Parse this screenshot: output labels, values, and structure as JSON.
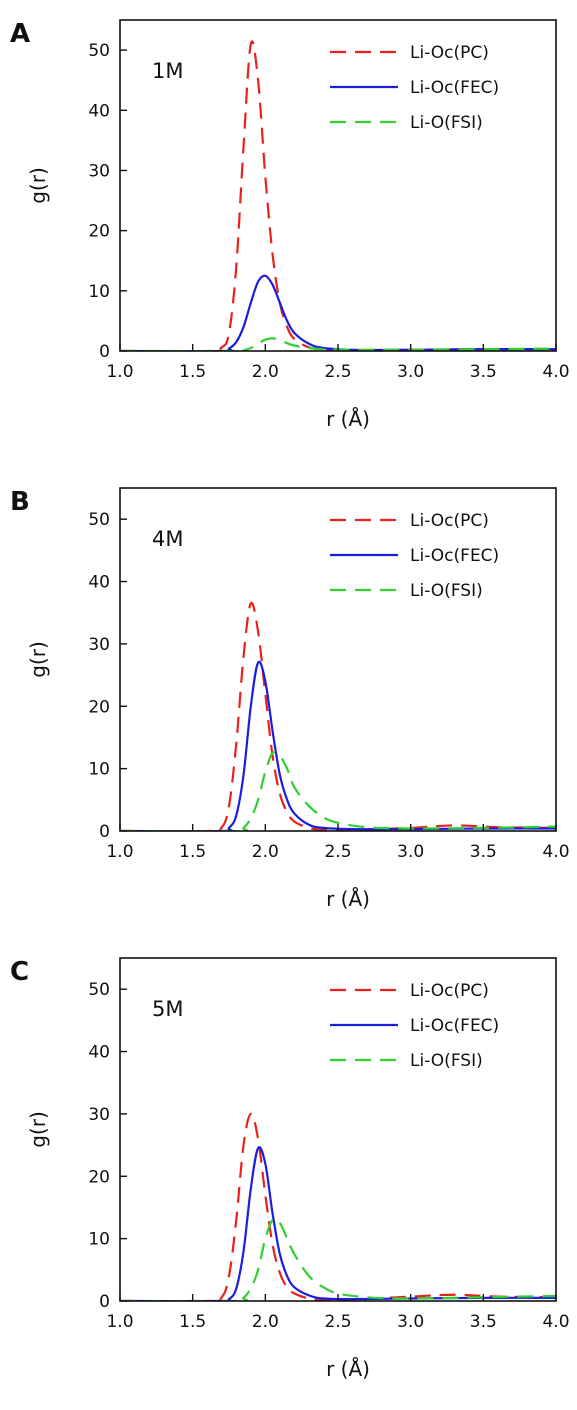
{
  "chart_data": [
    {
      "type": "line",
      "panel_label": "A",
      "annotation": "1M",
      "xlabel": "r (Å)",
      "ylabel": "g(r)",
      "xlim": [
        1.0,
        4.0
      ],
      "ylim": [
        0,
        55
      ],
      "x_ticks": [
        1.0,
        1.5,
        2.0,
        2.5,
        3.0,
        3.5,
        4.0
      ],
      "x_tick_labels": [
        "1.0",
        "1.5",
        "2.0",
        "2.5",
        "3.0",
        "3.5",
        "4.0"
      ],
      "y_ticks": [
        0,
        10,
        20,
        30,
        40,
        50
      ],
      "y_tick_labels": [
        "0",
        "10",
        "20",
        "30",
        "40",
        "50"
      ],
      "grid": false,
      "legend_position": "top-right",
      "series": [
        {
          "name": "Li-Oc(PC)",
          "color": "#e8211c",
          "dash": "dashed",
          "x": [
            1.0,
            1.6,
            1.7,
            1.75,
            1.8,
            1.85,
            1.9,
            1.95,
            2.0,
            2.05,
            2.1,
            2.15,
            2.2,
            2.3,
            2.4,
            2.6,
            3.0,
            3.5,
            4.0
          ],
          "y": [
            0,
            0,
            0.6,
            3,
            14,
            34,
            51,
            45,
            29,
            16,
            8,
            4,
            2,
            0.6,
            0.2,
            0.1,
            0.2,
            0.3,
            0.3
          ]
        },
        {
          "name": "Li-Oc(FEC)",
          "color": "#1c1ce0",
          "dash": "solid",
          "x": [
            1.0,
            1.7,
            1.75,
            1.8,
            1.85,
            1.9,
            1.95,
            2.0,
            2.05,
            2.1,
            2.15,
            2.2,
            2.3,
            2.4,
            2.6,
            3.0,
            3.5,
            4.0
          ],
          "y": [
            0,
            0,
            0.4,
            1.5,
            4,
            8,
            11.5,
            12.5,
            11,
            8,
            5,
            3,
            1.2,
            0.5,
            0.2,
            0.2,
            0.3,
            0.3
          ]
        },
        {
          "name": "Li-O(FSI)",
          "color": "#2fd02f",
          "dash": "dashed",
          "x": [
            1.0,
            1.8,
            1.85,
            1.9,
            1.95,
            2.0,
            2.05,
            2.1,
            2.15,
            2.2,
            2.3,
            2.4,
            2.6,
            3.0,
            3.5,
            4.0
          ],
          "y": [
            0,
            0,
            0.1,
            0.5,
            1.2,
            1.9,
            2.1,
            1.8,
            1.3,
            0.9,
            0.5,
            0.3,
            0.2,
            0.2,
            0.3,
            0.4
          ]
        }
      ]
    },
    {
      "type": "line",
      "panel_label": "B",
      "annotation": "4M",
      "xlabel": "r (Å)",
      "ylabel": "g(r)",
      "xlim": [
        1.0,
        4.0
      ],
      "ylim": [
        0,
        55
      ],
      "x_ticks": [
        1.0,
        1.5,
        2.0,
        2.5,
        3.0,
        3.5,
        4.0
      ],
      "x_tick_labels": [
        "1.0",
        "1.5",
        "2.0",
        "2.5",
        "3.0",
        "3.5",
        "4.0"
      ],
      "y_ticks": [
        0,
        10,
        20,
        30,
        40,
        50
      ],
      "y_tick_labels": [
        "0",
        "10",
        "20",
        "30",
        "40",
        "50"
      ],
      "grid": false,
      "legend_position": "top-right",
      "series": [
        {
          "name": "Li-Oc(PC)",
          "color": "#e8211c",
          "dash": "dashed",
          "x": [
            1.0,
            1.6,
            1.7,
            1.75,
            1.8,
            1.85,
            1.9,
            1.95,
            2.0,
            2.05,
            2.1,
            2.15,
            2.2,
            2.3,
            2.4,
            2.6,
            3.0,
            3.3,
            3.6,
            4.0
          ],
          "y": [
            0,
            0,
            0.6,
            4,
            14,
            28,
            36.5,
            32,
            22,
            12,
            6,
            3,
            1.5,
            0.5,
            0.2,
            0.2,
            0.5,
            0.9,
            0.6,
            0.5
          ]
        },
        {
          "name": "Li-Oc(FEC)",
          "color": "#1c1ce0",
          "dash": "solid",
          "x": [
            1.0,
            1.7,
            1.75,
            1.8,
            1.85,
            1.9,
            1.95,
            2.0,
            2.05,
            2.1,
            2.15,
            2.2,
            2.3,
            2.4,
            2.6,
            3.0,
            3.5,
            4.0
          ],
          "y": [
            0,
            0,
            0.5,
            2.5,
            9,
            20,
            27,
            24,
            16,
            9,
            5,
            2.8,
            1,
            0.5,
            0.3,
            0.3,
            0.4,
            0.4
          ]
        },
        {
          "name": "Li-O(FSI)",
          "color": "#2fd02f",
          "dash": "dashed",
          "x": [
            1.0,
            1.8,
            1.85,
            1.9,
            1.95,
            2.0,
            2.05,
            2.1,
            2.15,
            2.2,
            2.3,
            2.4,
            2.5,
            2.7,
            3.0,
            3.5,
            4.0
          ],
          "y": [
            0,
            0,
            0.5,
            2,
            5,
            9.5,
            12.5,
            12,
            10,
            7,
            4,
            2.2,
            1.3,
            0.6,
            0.4,
            0.5,
            0.7
          ]
        }
      ]
    },
    {
      "type": "line",
      "panel_label": "C",
      "annotation": "5M",
      "xlabel": "r (Å)",
      "ylabel": "g(r)",
      "xlim": [
        1.0,
        4.0
      ],
      "ylim": [
        0,
        55
      ],
      "x_ticks": [
        1.0,
        1.5,
        2.0,
        2.5,
        3.0,
        3.5,
        4.0
      ],
      "x_tick_labels": [
        "1.0",
        "1.5",
        "2.0",
        "2.5",
        "3.0",
        "3.5",
        "4.0"
      ],
      "y_ticks": [
        0,
        10,
        20,
        30,
        40,
        50
      ],
      "y_tick_labels": [
        "0",
        "10",
        "20",
        "30",
        "40",
        "50"
      ],
      "grid": false,
      "legend_position": "top-right",
      "series": [
        {
          "name": "Li-Oc(PC)",
          "color": "#e8211c",
          "dash": "dashed",
          "x": [
            1.0,
            1.6,
            1.7,
            1.75,
            1.8,
            1.85,
            1.9,
            1.95,
            2.0,
            2.05,
            2.1,
            2.15,
            2.2,
            2.3,
            2.4,
            2.6,
            3.0,
            3.3,
            3.6,
            4.0
          ],
          "y": [
            0,
            0,
            0.6,
            4,
            13,
            25,
            30,
            26,
            17,
            9,
            4.5,
            2.2,
            1.2,
            0.4,
            0.2,
            0.2,
            0.7,
            1.0,
            0.7,
            0.6
          ]
        },
        {
          "name": "Li-Oc(FEC)",
          "color": "#1c1ce0",
          "dash": "solid",
          "x": [
            1.0,
            1.7,
            1.75,
            1.8,
            1.85,
            1.9,
            1.95,
            2.0,
            2.05,
            2.1,
            2.15,
            2.2,
            2.3,
            2.4,
            2.6,
            3.0,
            3.5,
            4.0
          ],
          "y": [
            0,
            0,
            0.3,
            2,
            8,
            18,
            24.5,
            22,
            14,
            7.5,
            4,
            2.2,
            0.9,
            0.4,
            0.3,
            0.4,
            0.5,
            0.5
          ]
        },
        {
          "name": "Li-O(FSI)",
          "color": "#2fd02f",
          "dash": "dashed",
          "x": [
            1.0,
            1.8,
            1.85,
            1.9,
            1.95,
            2.0,
            2.05,
            2.1,
            2.15,
            2.2,
            2.3,
            2.4,
            2.5,
            2.7,
            3.0,
            3.5,
            4.0
          ],
          "y": [
            0,
            0,
            0.5,
            2,
            5,
            10,
            13,
            12.5,
            10,
            7.5,
            4,
            2.2,
            1.2,
            0.6,
            0.4,
            0.6,
            0.8
          ]
        }
      ]
    }
  ]
}
